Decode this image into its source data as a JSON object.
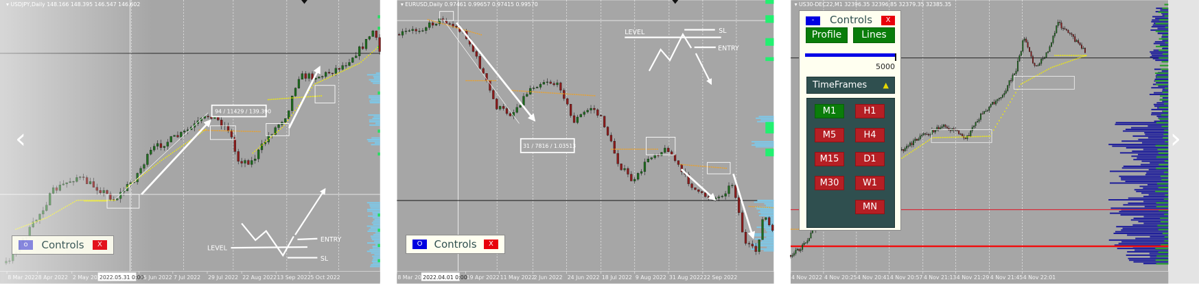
{
  "colors": {
    "chart_bg": "#a6a6a6",
    "bull": "#1d6b1d",
    "bear": "#8c1b1b",
    "signal_dots": "#f5f000",
    "orange_dots": "#f0a020",
    "profile_blue": "#1c1c9a",
    "profile_light": "#7ec8e8",
    "profile_green": "#2fa02f",
    "accent_red": "#e8000b"
  },
  "nav": {
    "prev_icon": "chevron-left-icon",
    "next_icon": "chevron-right-icon"
  },
  "panels": [
    {
      "header": {
        "symbol": "USDJPY,Daily",
        "ohlc": "148.166 148.395 146.547 146.602"
      },
      "time_labels": [
        "8 Mar 2022",
        "8 Apr 2022",
        "2 May 2022",
        "15 Jun 2022",
        "7 Jul 2022",
        "29 Jul 2022",
        "22 Aug 2022",
        "13 Sep 2022",
        "5 Oct 2022"
      ],
      "crosshair_time": "2022.05.31 0:00",
      "price_box": "94 / 11429 / 139.390",
      "schematic": {
        "level": "LEVEL",
        "entry": "ENTRY",
        "sl": "SL"
      },
      "controls": {
        "minimize_label": "o",
        "title": "Controls",
        "close_label": "X"
      }
    },
    {
      "header": {
        "symbol": "EURUSD,Daily",
        "ohlc": "0.97461 0.99657 0.97415 0.99570"
      },
      "time_labels": [
        "8 Mar 2022",
        "19 Apr 2022",
        "11 May 2022",
        "2 Jun 2022",
        "24 Jun 2022",
        "18 Jul 2022",
        "9 Aug 2022",
        "31 Aug 2022",
        "22 Sep 2022"
      ],
      "crosshair_time": "2022.04.01 0:00",
      "price_box": "31 / 7816 / 1.03513",
      "schematic": {
        "level": "LEVEL",
        "entry": "ENTRY",
        "sl": "SL"
      },
      "controls": {
        "minimize_label": "O",
        "title": "Controls",
        "close_label": "X"
      }
    },
    {
      "header": {
        "symbol": "US30-DEC22,M1",
        "ohlc": "32396.35 32396.85 32379.35 32385.35"
      },
      "time_labels": [
        "4 Nov 2022",
        "4 Nov 20:25",
        "4 Nov 20:41",
        "4 Nov 20:57",
        "4 Nov 21:13",
        "4 Nov 21:29",
        "4 Nov 21:45",
        "4 Nov 22:01"
      ],
      "controls": {
        "minimize_label": "-",
        "title": "Controls",
        "close_label": "X",
        "profile_label": "Profile",
        "lines_label": "Lines",
        "slider_value": "5000",
        "slider_fill_fraction": 1.0,
        "timeframes_label": "TimeFrames",
        "timeframes_icon": "collapse-arrow-icon",
        "timeframes": [
          {
            "label": "M1",
            "active": true
          },
          {
            "label": "H1",
            "active": false
          },
          {
            "label": "M5",
            "active": false
          },
          {
            "label": "H4",
            "active": false
          },
          {
            "label": "M15",
            "active": false
          },
          {
            "label": "D1",
            "active": false
          },
          {
            "label": "M30",
            "active": false
          },
          {
            "label": "W1",
            "active": false
          },
          {
            "label": "MN",
            "active": false
          }
        ]
      }
    }
  ]
}
